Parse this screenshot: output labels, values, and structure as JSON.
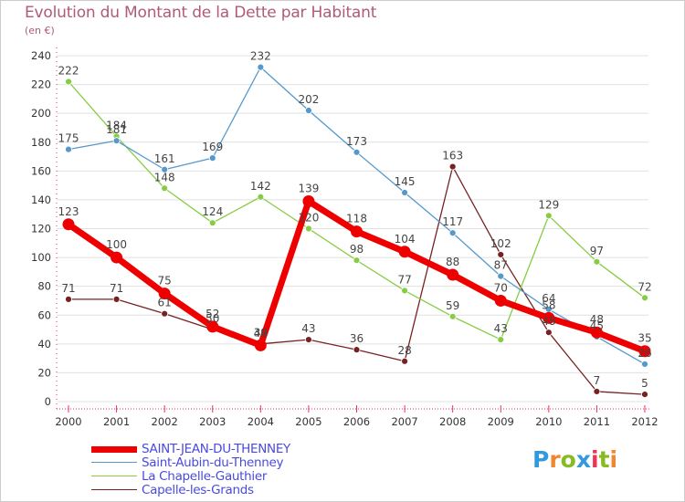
{
  "header": {
    "title": "Evolution du Montant de la Dette par Habitant",
    "subtitle": "(en €)"
  },
  "logo": {
    "text": "Proxiti"
  },
  "colors": {
    "title": "#b05a78",
    "axis": "#ee3355",
    "grid": "#e0e0e0",
    "legend_text": "#4a4ae0"
  },
  "chart_data": {
    "type": "line",
    "title": "Evolution du Montant de la Dette par Habitant",
    "subtitle": "(en €)",
    "xlabel": "",
    "ylabel": "",
    "x": [
      "2000",
      "2001",
      "2002",
      "2003",
      "2004",
      "2005",
      "2006",
      "2007",
      "2008",
      "2009",
      "2010",
      "2011",
      "2012"
    ],
    "ylim": [
      0,
      240
    ],
    "yticks": [
      0,
      20,
      40,
      60,
      80,
      100,
      120,
      140,
      160,
      180,
      200,
      220,
      240
    ],
    "grid": true,
    "legend_position": "bottom-left",
    "series": [
      {
        "name": "SAINT-JEAN-DU-THENNEY",
        "color": "#ee0000",
        "values": [
          123,
          100,
          75,
          52,
          39,
          139,
          118,
          104,
          88,
          70,
          58,
          48,
          35
        ]
      },
      {
        "name": "Saint-Aubin-du-Thenney",
        "color": "#5599cc",
        "values": [
          175,
          181,
          161,
          169,
          232,
          202,
          173,
          145,
          117,
          87,
          64,
          45,
          26
        ]
      },
      {
        "name": "La Chapelle-Gauthier",
        "color": "#88cc44",
        "values": [
          222,
          184,
          148,
          124,
          142,
          120,
          98,
          77,
          59,
          43,
          129,
          97,
          72
        ]
      },
      {
        "name": "Capelle-les-Grands",
        "color": "#772222",
        "values": [
          71,
          71,
          61,
          50,
          40,
          43,
          36,
          28,
          163,
          102,
          48,
          7,
          5
        ]
      }
    ]
  }
}
